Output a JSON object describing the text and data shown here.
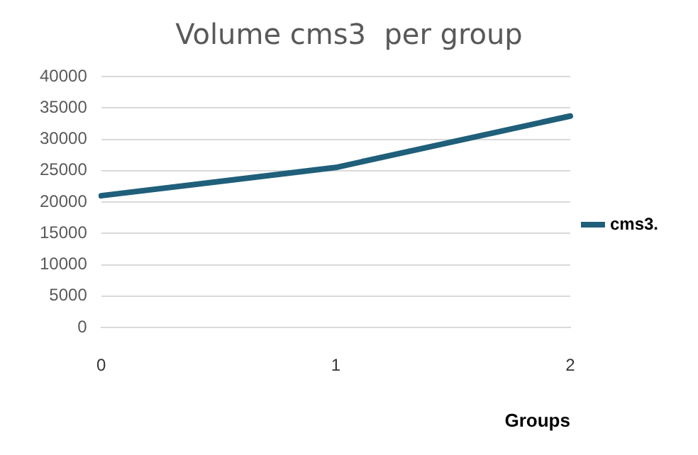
{
  "chart_data": {
    "type": "line",
    "title": "Volume cms3  per group",
    "xlabel": "Groups",
    "categories": [
      "0",
      "1",
      "2"
    ],
    "series": [
      {
        "name": "cms3.",
        "color": "#1f5f7a",
        "values": [
          21000,
          25500,
          33700
        ]
      }
    ],
    "ylim": [
      0,
      40000
    ],
    "yticks": [
      0,
      5000,
      10000,
      15000,
      20000,
      25000,
      30000,
      35000,
      40000
    ],
    "grid": "y",
    "legend": "right",
    "marker": "none",
    "line_style": "solid"
  }
}
